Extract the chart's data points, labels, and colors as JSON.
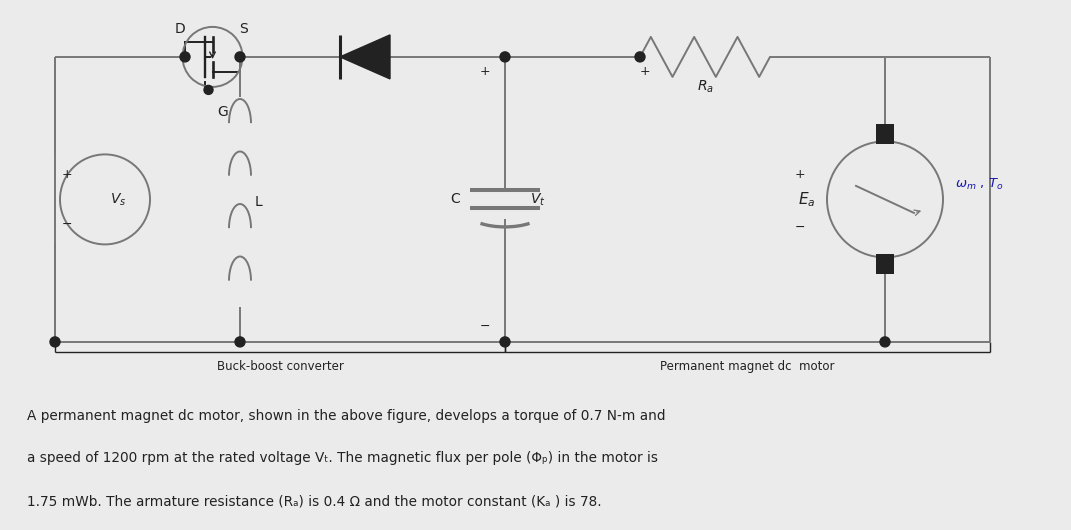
{
  "bg_color": "#ebebeb",
  "circuit_bg": "#ffffff",
  "line_color": "#777777",
  "dark": "#222222",
  "blue_color": "#1a1ab0",
  "bottom_text_line1": "A permanent magnet dc motor, shown in the above figure, develops a torque of 0.7 N-m and",
  "bottom_text_line2": "a speed of 1200 rpm at the rated voltage Vₜ. The magnetic flux per pole (Φₚ) in the motor is",
  "bottom_text_line3": "1.75 mWb. The armature resistance (Rₐ) is 0.4 Ω and the motor constant (Kₐ ) is 78.",
  "buck_boost_label": "Buck-boost converter",
  "motor_label": "Permanent magnet dc  motor",
  "lw": 1.4
}
